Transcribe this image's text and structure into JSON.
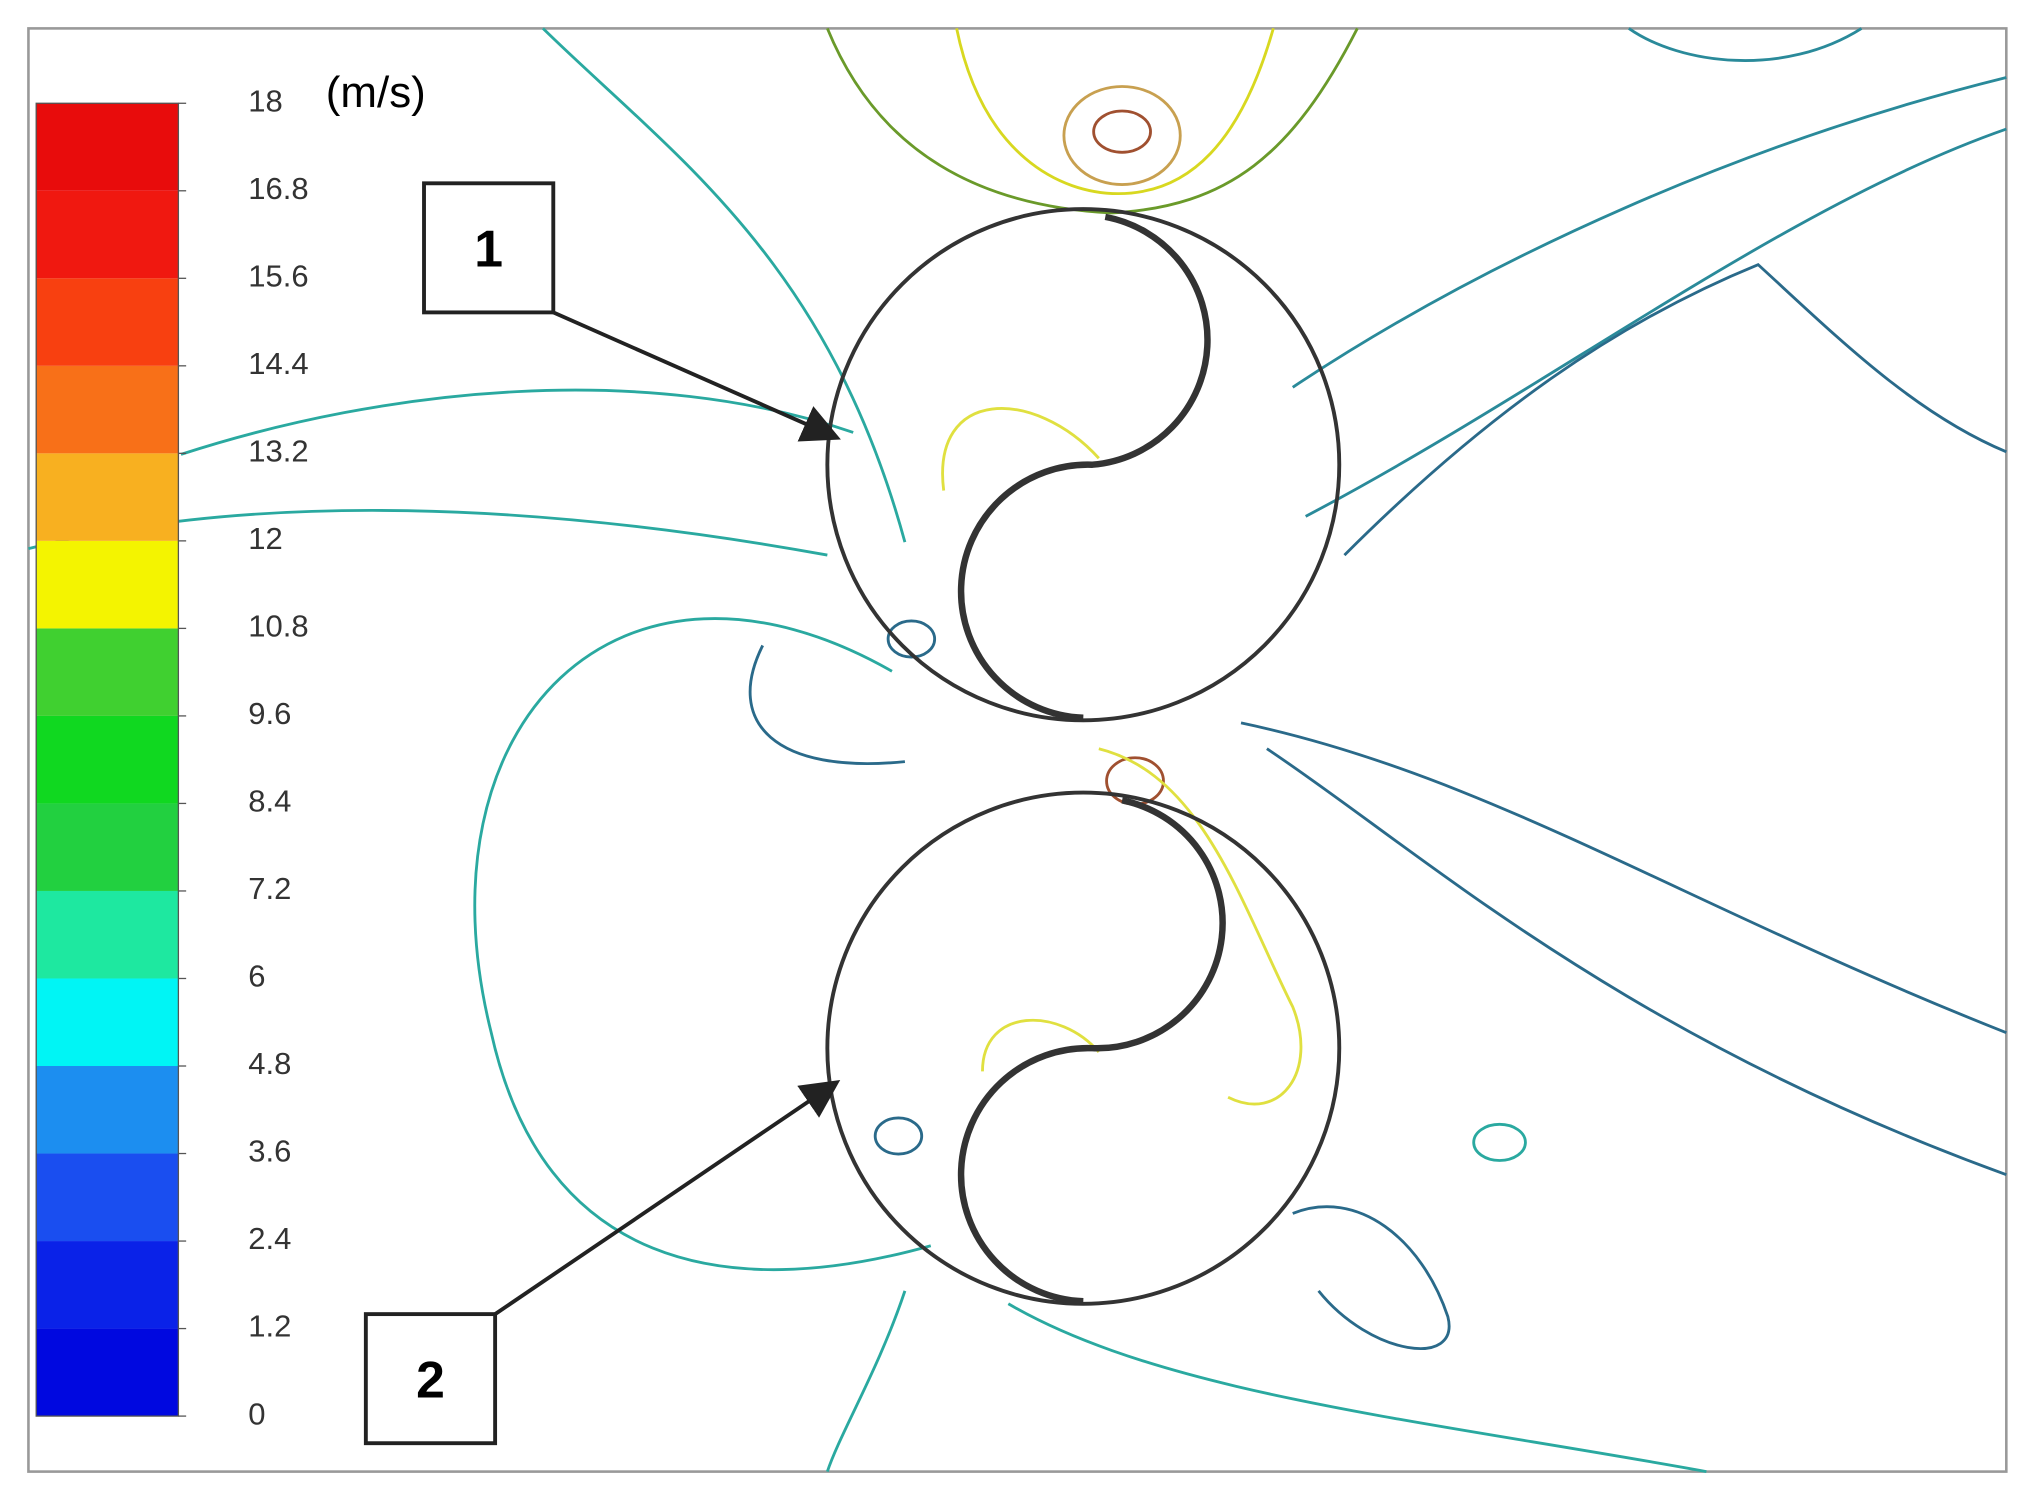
{
  "chart_data": {
    "type": "contour",
    "colorbar": {
      "unit": "(m/s)",
      "lim": [
        0,
        18
      ],
      "ticks": [
        0,
        1.2,
        2.4,
        3.6,
        4.8,
        6,
        7.2,
        8.4,
        9.6,
        10.8,
        12,
        13.2,
        14.4,
        15.6,
        16.8,
        18
      ],
      "colors": [
        "#0008e0",
        "#0a22e8",
        "#1a4ef0",
        "#1c8ef0",
        "#00f5f5",
        "#1ee8a0",
        "#22d040",
        "#10d820",
        "#40d030",
        "#f4f400",
        "#f8b020",
        "#f87018",
        "#f84010",
        "#f01810",
        "#e80c0c"
      ]
    },
    "annotations": [
      "1",
      "2"
    ]
  }
}
